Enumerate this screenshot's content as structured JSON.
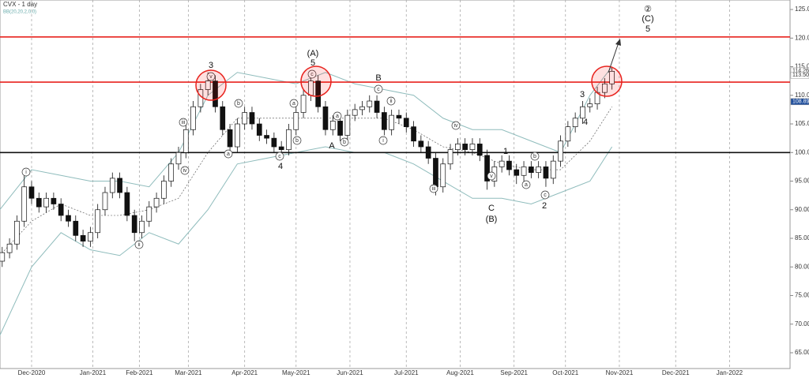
{
  "chart_data": {
    "type": "candlestick",
    "title": "CVX  - 1 day",
    "indicator_label": "BB(20,20,2,0,0)",
    "xlim": [
      -12.9,
      309.7
    ],
    "ylim": [
      62.24,
      126.66
    ],
    "xticks": [
      {
        "value": 0,
        "label": "Dec-2020"
      },
      {
        "value": 25,
        "label": "Jan-2021"
      },
      {
        "value": 44,
        "label": "Feb-2021"
      },
      {
        "value": 64,
        "label": "Mar-2021"
      },
      {
        "value": 87,
        "label": "Apr-2021"
      },
      {
        "value": 108,
        "label": "May-2021"
      },
      {
        "value": 130,
        "label": "Jun-2021"
      },
      {
        "value": 153,
        "label": "Jul-2021"
      },
      {
        "value": 175,
        "label": "Aug-2021"
      },
      {
        "value": 197,
        "label": "Sep-2021"
      },
      {
        "value": 218,
        "label": "Oct-2021"
      },
      {
        "value": 240,
        "label": "Nov-2021"
      },
      {
        "value": 263,
        "label": "Dec-2021"
      },
      {
        "value": 285,
        "label": "Jan-2022"
      }
    ],
    "yticks": [
      {
        "value": 65,
        "label": "65.00"
      },
      {
        "value": 70,
        "label": "70.00"
      },
      {
        "value": 75,
        "label": "75.00"
      },
      {
        "value": 80,
        "label": "80.00"
      },
      {
        "value": 85,
        "label": "85.00"
      },
      {
        "value": 90,
        "label": "90.00"
      },
      {
        "value": 95,
        "label": "95.00"
      },
      {
        "value": 100,
        "label": "100.00"
      },
      {
        "value": 105,
        "label": "105.00"
      },
      {
        "value": 110,
        "label": "110.00"
      },
      {
        "value": 115,
        "label": "115.00"
      },
      {
        "value": 120,
        "label": "120.00"
      },
      {
        "value": 125,
        "label": "125.00"
      }
    ],
    "x": [
      -12,
      -9,
      -6,
      -3,
      0,
      3,
      6,
      9,
      12,
      15,
      18,
      21,
      24,
      27,
      30,
      33,
      36,
      39,
      42,
      45,
      48,
      51,
      54,
      57,
      60,
      63,
      66,
      69,
      72,
      75,
      78,
      81,
      84,
      87,
      90,
      93,
      96,
      99,
      102,
      105,
      108,
      111,
      114,
      117,
      120,
      123,
      126,
      129,
      132,
      135,
      138,
      141,
      144,
      147,
      150,
      153,
      156,
      159,
      162,
      165,
      168,
      171,
      174,
      177,
      180,
      183,
      186,
      189,
      192,
      195,
      198,
      201,
      204,
      207,
      210,
      213,
      216,
      219,
      222,
      225,
      228,
      231,
      234,
      237
    ],
    "open": [
      81,
      82.5,
      84,
      88,
      94,
      92,
      90.5,
      92,
      91,
      89,
      88,
      85.5,
      84.5,
      86,
      90,
      93,
      95.5,
      93,
      89,
      86,
      88,
      90.5,
      92,
      95,
      98,
      100,
      104,
      108,
      111,
      112.5,
      108,
      104,
      101,
      105,
      107,
      105,
      103,
      102.5,
      101,
      100.5,
      104,
      107,
      110,
      112.5,
      108,
      104,
      105.5,
      103,
      106.5,
      107.5,
      108,
      109,
      107,
      104,
      106.5,
      106,
      104.5,
      102,
      101,
      99,
      94,
      98,
      100.5,
      101.5,
      100.5,
      101.5,
      99.5,
      95,
      97.5,
      98.5,
      97,
      96,
      97.5,
      96.5,
      97.5,
      95.5,
      98.5,
      102,
      104.5,
      106,
      108,
      108.5,
      110.5,
      112
    ],
    "high": [
      83.5,
      85,
      89,
      96.2,
      95,
      93,
      93,
      93,
      92,
      90,
      89,
      86.5,
      87,
      91,
      94,
      96.5,
      96.5,
      94,
      90,
      89,
      91.5,
      93,
      96,
      99,
      101,
      105,
      109,
      112,
      114,
      113.5,
      109,
      105,
      106,
      108,
      108,
      106,
      104,
      103.5,
      102,
      105,
      108,
      111,
      113.8,
      113.5,
      109,
      106.5,
      106.5,
      107.5,
      108.5,
      109,
      110,
      110,
      108,
      107.5,
      107.5,
      107,
      105.5,
      103,
      102,
      100,
      99,
      101.5,
      102.5,
      102.5,
      102.5,
      102.5,
      100.5,
      98.5,
      99.5,
      99.5,
      98,
      98.5,
      98.5,
      98.5,
      98.5,
      99.5,
      103,
      105.5,
      107,
      109,
      109.5,
      111.5,
      113,
      114.8
    ],
    "low": [
      80,
      81.5,
      83,
      87,
      91,
      89.5,
      89.5,
      90,
      88,
      87,
      84.5,
      83.5,
      83.5,
      85,
      89,
      92,
      92,
      88,
      84.5,
      85,
      87,
      89.5,
      91,
      94,
      97,
      99,
      103,
      107,
      110,
      107,
      103,
      100,
      100,
      104,
      104,
      102,
      101.5,
      100,
      99.5,
      99.5,
      103,
      106,
      109,
      107,
      103,
      103,
      102,
      102,
      105.5,
      106.5,
      107,
      106,
      103,
      103,
      105,
      103.5,
      101,
      100,
      98,
      92.5,
      93,
      97,
      99.5,
      99.5,
      99.5,
      98.5,
      93.5,
      94,
      96.5,
      96,
      94.5,
      95,
      95.5,
      95.5,
      94,
      94.5,
      97.5,
      101,
      103.5,
      105,
      107,
      107.5,
      109.5,
      111
    ],
    "close": [
      82.5,
      84,
      88,
      94,
      92,
      90.5,
      92,
      91,
      89,
      88,
      85.5,
      84.5,
      86,
      90,
      93,
      95.5,
      93,
      89,
      86,
      88,
      90.5,
      92,
      95,
      98,
      100,
      104,
      108,
      111,
      112.5,
      108,
      104,
      101,
      105,
      107,
      105,
      103,
      102.5,
      101,
      100.5,
      104,
      107,
      110,
      112.5,
      108,
      104,
      105.5,
      103,
      106.5,
      107.5,
      108,
      109,
      107,
      104,
      106.5,
      106,
      104.5,
      102,
      101,
      99,
      94,
      98,
      100.5,
      101.5,
      100.5,
      101.5,
      99.5,
      95,
      97.5,
      98.5,
      97,
      96,
      97.5,
      96.5,
      97.5,
      95.5,
      98.5,
      102,
      104.5,
      106,
      108,
      108.5,
      110.5,
      112,
      114.2
    ],
    "bollinger": {
      "color": "#8fbcbc",
      "x": [
        -13,
        0,
        12,
        24,
        36,
        48,
        60,
        72,
        84,
        96,
        108,
        120,
        132,
        144,
        156,
        168,
        180,
        192,
        204,
        216,
        228,
        237
      ],
      "upper": [
        90,
        97,
        96,
        95,
        95,
        94,
        100,
        110,
        114,
        113,
        112,
        114,
        112,
        111,
        110,
        106,
        104,
        104,
        102,
        100,
        110,
        115
      ],
      "middle": [
        82,
        88,
        91,
        89,
        89,
        90,
        92,
        100,
        106,
        106,
        106,
        106,
        106,
        106,
        104,
        101,
        100,
        98,
        97,
        97,
        102,
        108
      ],
      "lower": [
        68,
        80,
        86,
        83,
        82,
        86,
        84,
        90,
        98,
        99,
        100,
        101,
        100,
        100,
        98,
        95,
        92,
        92,
        91,
        93,
        95,
        101
      ]
    },
    "levels": [
      {
        "value": 120.2,
        "color": "#e8231e"
      },
      {
        "value": 112.3,
        "color": "#e8231e"
      },
      {
        "value": 100,
        "color": "#111111"
      }
    ],
    "price_labels": [
      114.26,
      {
        "value": 113.5,
        "label": "113.50"
      },
      108.89
    ],
    "wave_labels": [
      "3",
      "(A)",
      "5",
      "B",
      "A",
      "4",
      "1",
      "C",
      "(B)",
      "2",
      "3",
      "4",
      "②",
      "(C)",
      "5"
    ],
    "circled_labels": [
      "i",
      "v",
      "iii",
      "iv",
      "ii",
      "b",
      "a",
      "a",
      "b",
      "c",
      "c",
      "a",
      "b",
      "c",
      "ii",
      "i",
      "iv",
      "iii",
      "v",
      "a",
      "b",
      "c"
    ]
  }
}
